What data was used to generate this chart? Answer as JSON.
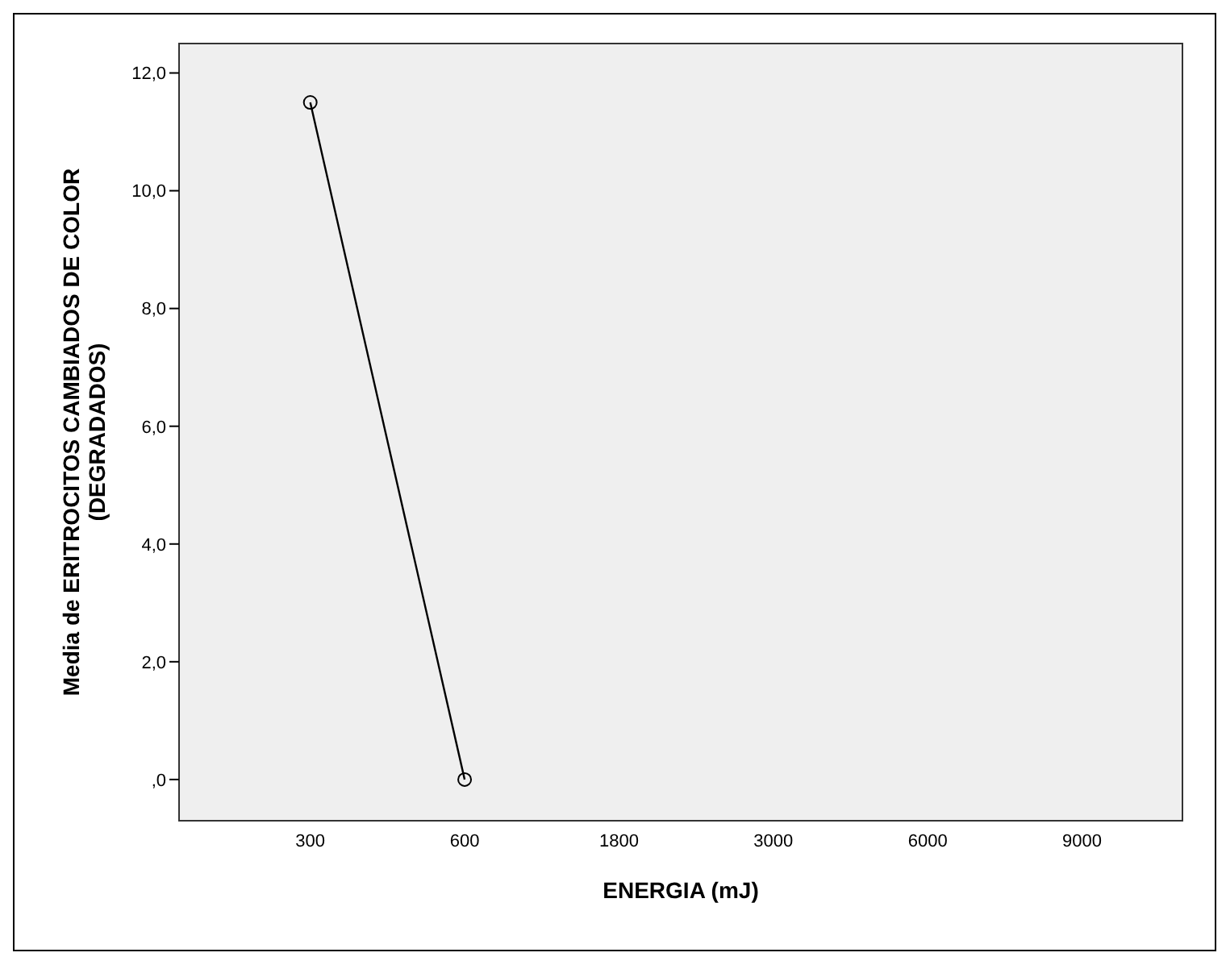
{
  "chart_data": {
    "type": "line",
    "xlabel": "ENERGIA (mJ)",
    "ylabel": "Media de ERITROCITOS CAMBIADOS DE COLOR (DEGRADADOS)",
    "categories": [
      "300",
      "600",
      "1800",
      "3000",
      "6000",
      "9000"
    ],
    "series": [
      {
        "color": "#000000",
        "values": [
          11.5,
          0,
          null,
          null,
          null,
          null
        ]
      }
    ],
    "ylim": [
      -0.7,
      12.5
    ],
    "yticks": [
      {
        "value": 0,
        "label": ",0"
      },
      {
        "value": 2,
        "label": "2,0"
      },
      {
        "value": 4,
        "label": "4,0"
      },
      {
        "value": 6,
        "label": "6,0"
      },
      {
        "value": 8,
        "label": "8,0"
      },
      {
        "value": 10,
        "label": "10,0"
      },
      {
        "value": 12,
        "label": "12,0"
      }
    ],
    "legend": false,
    "marker": "circle",
    "line_style": "solid"
  }
}
